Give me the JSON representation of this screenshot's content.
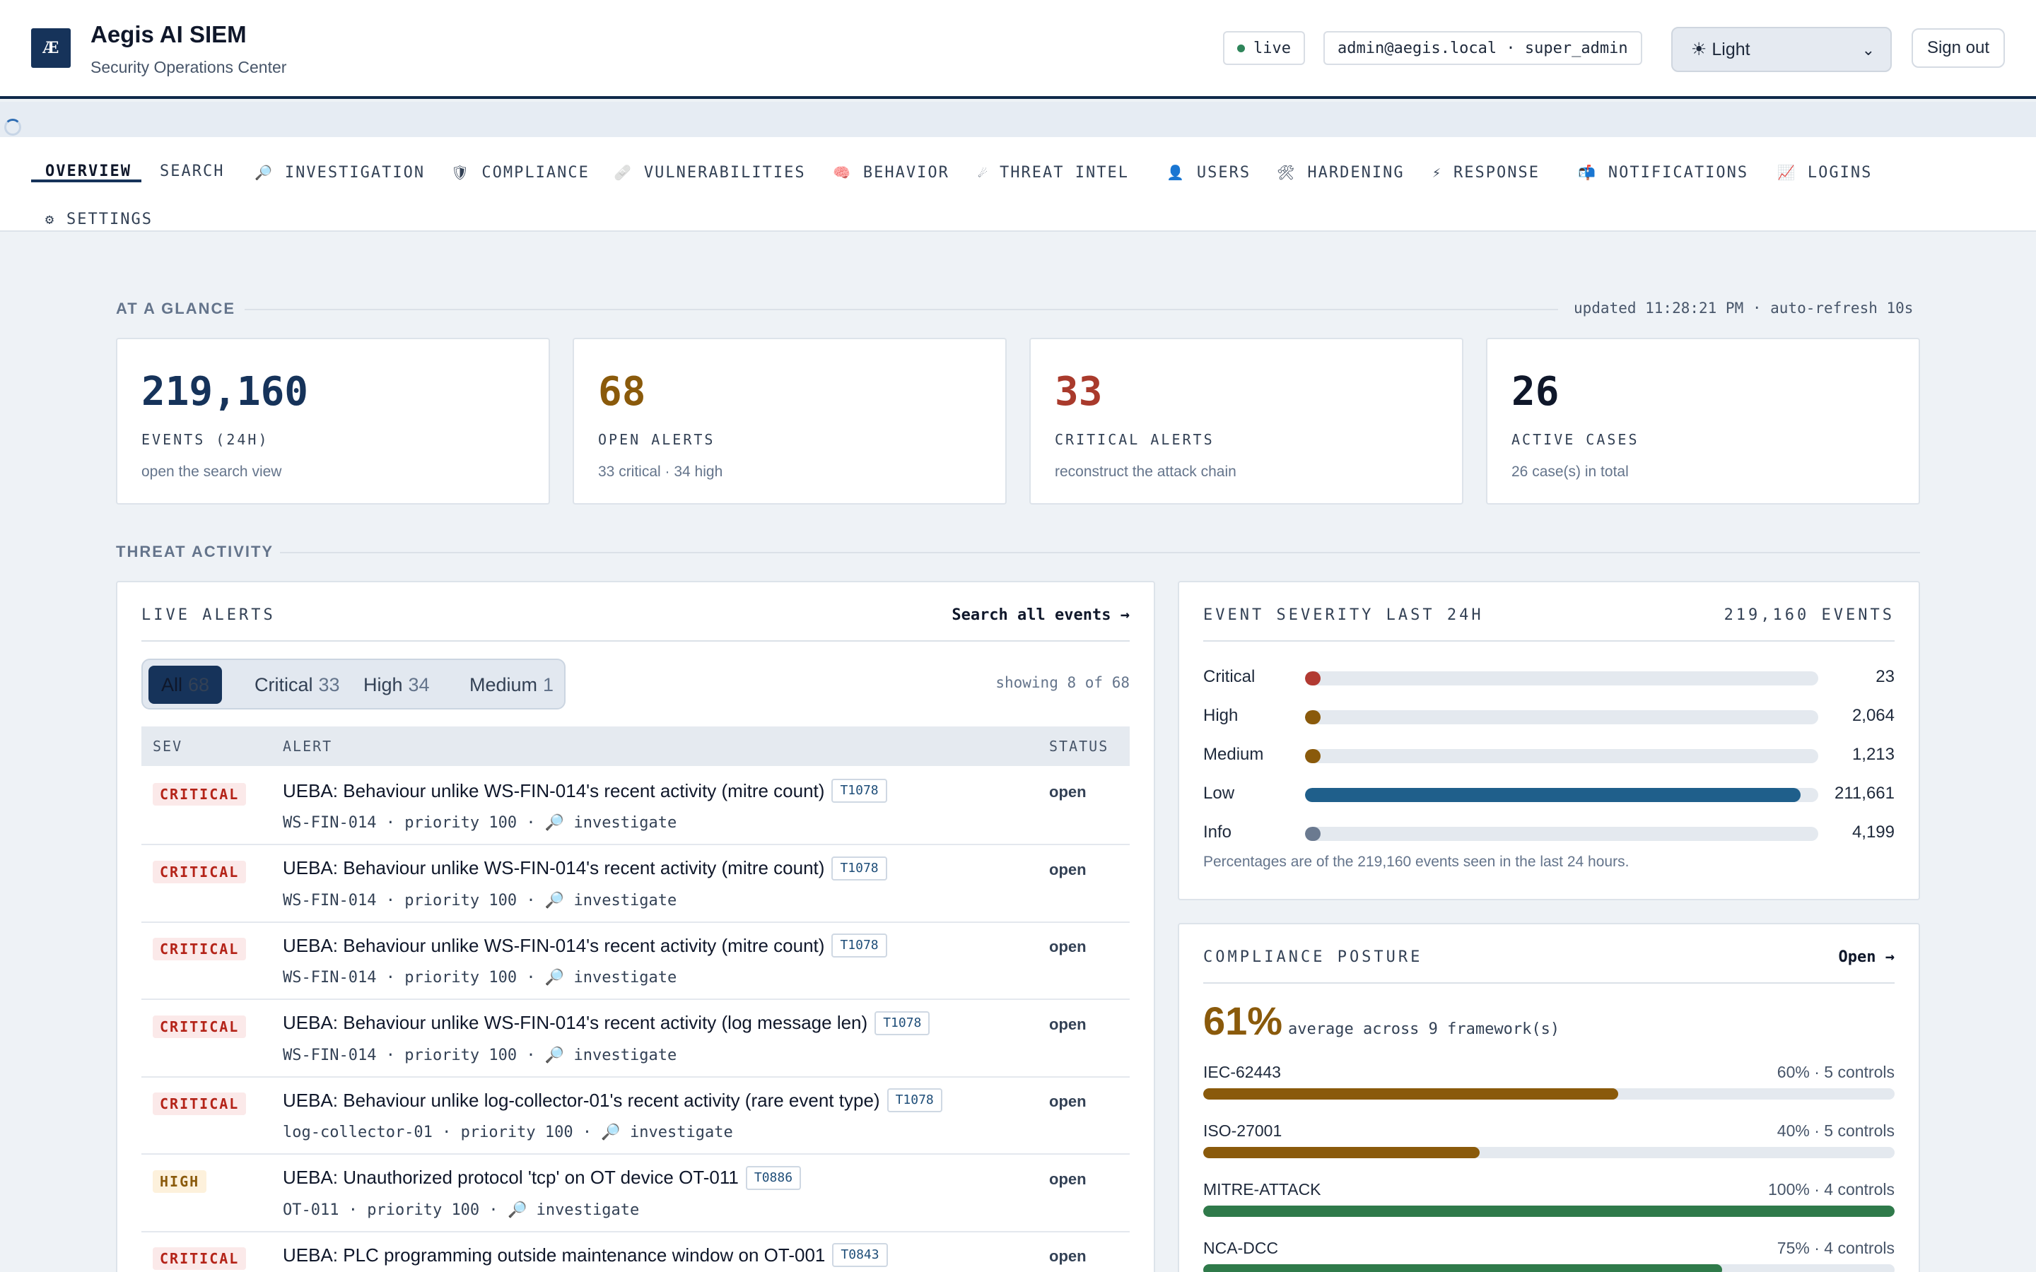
{
  "header": {
    "logo_text": "Æ",
    "title": "Aegis AI SIEM",
    "subtitle": "Security Operations Center",
    "live_label": "live",
    "user_label": "admin@aegis.local · super_admin",
    "theme_value": "☀ Light",
    "signout_label": "Sign out"
  },
  "tabs": [
    {
      "label": "OVERVIEW",
      "icon": ""
    },
    {
      "label": "SEARCH",
      "icon": ""
    },
    {
      "label": "INVESTIGATION",
      "icon": "🔎"
    },
    {
      "label": "COMPLIANCE",
      "icon": "🛡"
    },
    {
      "label": "VULNERABILITIES",
      "icon": "🩹"
    },
    {
      "label": "BEHAVIOR",
      "icon": "🧠"
    },
    {
      "label": "THREAT INTEL",
      "icon": "☄"
    },
    {
      "label": "USERS",
      "icon": "👤"
    },
    {
      "label": "HARDENING",
      "icon": "🛠"
    },
    {
      "label": "RESPONSE",
      "icon": "⚡"
    },
    {
      "label": "NOTIFICATIONS",
      "icon": "📬"
    },
    {
      "label": "LOGINS",
      "icon": "📈"
    },
    {
      "label": "SETTINGS",
      "icon": "⚙"
    }
  ],
  "glance": {
    "label": "AT A GLANCE",
    "updated": "updated 11:28:21 PM · auto-refresh 10s",
    "kpis": [
      {
        "value": "219,160",
        "label": "EVENTS (24H)",
        "sub": "open the search view",
        "color": "#16335a"
      },
      {
        "value": "68",
        "label": "OPEN ALERTS",
        "sub": "33 critical · 34 high",
        "color": "#8a5a0b"
      },
      {
        "value": "33",
        "label": "CRITICAL ALERTS",
        "sub": "reconstruct the attack chain",
        "color": "#a93a2c"
      },
      {
        "value": "26",
        "label": "ACTIVE CASES",
        "sub": "26 case(s) in total",
        "color": "#0f172a"
      }
    ]
  },
  "threat_label": "THREAT ACTIVITY",
  "alerts": {
    "title": "LIVE ALERTS",
    "link": "Search all events →",
    "filters": [
      {
        "label": "All",
        "count": "68"
      },
      {
        "label": "Critical",
        "count": "33"
      },
      {
        "label": "High",
        "count": "34"
      },
      {
        "label": "Medium",
        "count": "1"
      }
    ],
    "showing": "showing 8 of 68",
    "columns": {
      "sev": "SEV",
      "alert": "ALERT",
      "status": "STATUS"
    },
    "rows": [
      {
        "sev": "CRITICAL",
        "title": "UEBA: Behaviour unlike WS-FIN-014's recent activity (mitre count)",
        "tag": "T1078",
        "host": "WS-FIN-014",
        "priority": "priority 100",
        "action": "🔎 investigate",
        "status": "open"
      },
      {
        "sev": "CRITICAL",
        "title": "UEBA: Behaviour unlike WS-FIN-014's recent activity (mitre count)",
        "tag": "T1078",
        "host": "WS-FIN-014",
        "priority": "priority 100",
        "action": "🔎 investigate",
        "status": "open"
      },
      {
        "sev": "CRITICAL",
        "title": "UEBA: Behaviour unlike WS-FIN-014's recent activity (mitre count)",
        "tag": "T1078",
        "host": "WS-FIN-014",
        "priority": "priority 100",
        "action": "🔎 investigate",
        "status": "open"
      },
      {
        "sev": "CRITICAL",
        "title": "UEBA: Behaviour unlike WS-FIN-014's recent activity (log message len)",
        "tag": "T1078",
        "host": "WS-FIN-014",
        "priority": "priority 100",
        "action": "🔎 investigate",
        "status": "open"
      },
      {
        "sev": "CRITICAL",
        "title": "UEBA: Behaviour unlike log-collector-01's recent activity (rare event type)",
        "tag": "T1078",
        "host": "log-collector-01",
        "priority": "priority 100",
        "action": "🔎 investigate",
        "status": "open"
      },
      {
        "sev": "HIGH",
        "title": "UEBA: Unauthorized protocol 'tcp' on OT device OT-011",
        "tag": "T0886",
        "host": "OT-011",
        "priority": "priority 100",
        "action": "🔎 investigate",
        "status": "open"
      },
      {
        "sev": "CRITICAL",
        "title": "UEBA: PLC programming outside maintenance window on OT-001",
        "tag": "T0843",
        "host": "",
        "priority": "",
        "action": "",
        "status": "open"
      }
    ]
  },
  "severity": {
    "title": "EVENT SEVERITY LAST 24H",
    "total": "219,160 EVENTS",
    "levels": [
      {
        "name": "Critical",
        "count": "23",
        "fraction": 0.0001,
        "color": "#b23a32"
      },
      {
        "name": "High",
        "count": "2,064",
        "fraction": 0.0094,
        "color": "#8a5a0b"
      },
      {
        "name": "Medium",
        "count": "1,213",
        "fraction": 0.0055,
        "color": "#8a5a0b"
      },
      {
        "name": "Low",
        "count": "211,661",
        "fraction": 0.9658,
        "color": "#1f5f8b"
      },
      {
        "name": "Info",
        "count": "4,199",
        "fraction": 0.0192,
        "color": "#6b7a90"
      }
    ],
    "note": "Percentages are of the 219,160 events seen in the last 24 hours."
  },
  "compliance": {
    "title": "COMPLIANCE POSTURE",
    "link": "Open →",
    "average": "61%",
    "average_label": "average across 9 framework(s)",
    "frameworks": [
      {
        "name": "IEC-62443",
        "stat": "60% · 5 controls",
        "percent": 60,
        "color": "#8a5a0b"
      },
      {
        "name": "ISO-27001",
        "stat": "40% · 5 controls",
        "percent": 40,
        "color": "#8a5a0b"
      },
      {
        "name": "MITRE-ATTACK",
        "stat": "100% · 4 controls",
        "percent": 100,
        "color": "#2f7a4a"
      },
      {
        "name": "NCA-DCC",
        "stat": "75% · 4 controls",
        "percent": 75,
        "color": "#2f7a4a"
      }
    ]
  }
}
